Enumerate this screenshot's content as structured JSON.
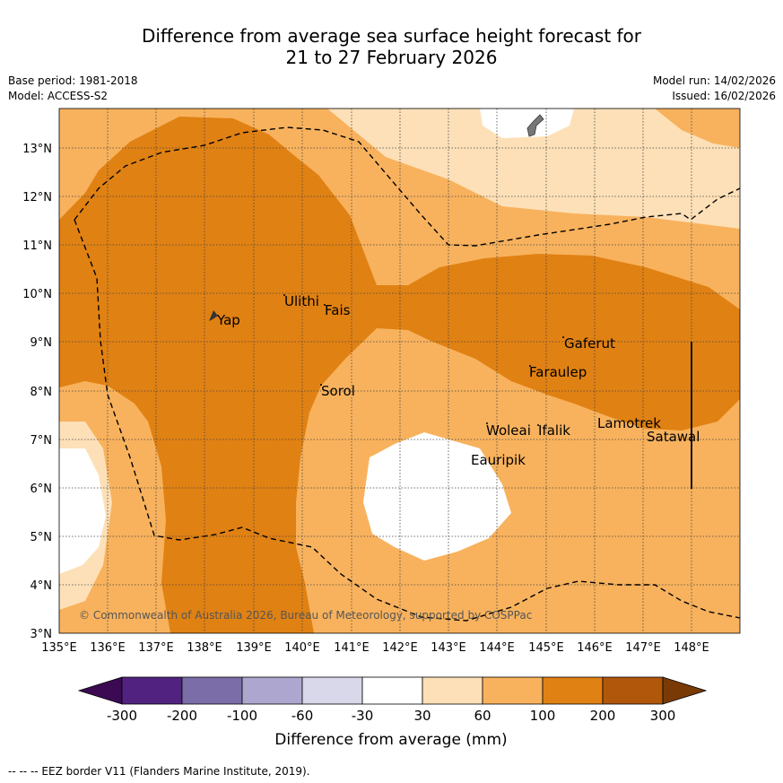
{
  "title": {
    "line1": "Difference from average sea surface height forecast for",
    "line2": "21 to 27 February 2026"
  },
  "meta": {
    "base_period": "Base period: 1981-2018",
    "model": "Model: ACCESS-S2",
    "model_run": "Model run: 14/02/2026",
    "issued": "Issued: 16/02/2026"
  },
  "map": {
    "lon_ticks": [
      "135°E",
      "136°E",
      "137°E",
      "138°E",
      "139°E",
      "140°E",
      "141°E",
      "142°E",
      "143°E",
      "144°E",
      "145°E",
      "146°E",
      "147°E",
      "148°E"
    ],
    "lat_ticks": [
      "13°N",
      "12°N",
      "11°N",
      "10°N",
      "9°N",
      "8°N",
      "7°N",
      "6°N",
      "5°N",
      "4°N",
      "3°N"
    ],
    "places": [
      "Yap",
      "Ulithi",
      "Fais",
      "Sorol",
      "Gaferut",
      "Faraulep",
      "Woleai",
      "Ifalik",
      "Eauripik",
      "Lamotrek",
      "Satawal"
    ],
    "copyright": "© Commonwealth of Australia 2026, Bureau of Meteorology, supported by COSPPac"
  },
  "colorbar": {
    "labels": [
      "-300",
      "-200",
      "-100",
      "-60",
      "-30",
      "30",
      "60",
      "100",
      "200",
      "300"
    ],
    "colors": [
      "#3b0a53",
      "#51227f",
      "#7b6ea8",
      "#ada7cf",
      "#d8d8ea",
      "#ffffff",
      "#fde0b7",
      "#f8b25d",
      "#e08113",
      "#b0570b",
      "#7a3a06"
    ],
    "title": "Difference from average (mm)"
  },
  "footer": "--  --  -- EEZ border V11 (Flanders Marine Institute, 2019)."
}
